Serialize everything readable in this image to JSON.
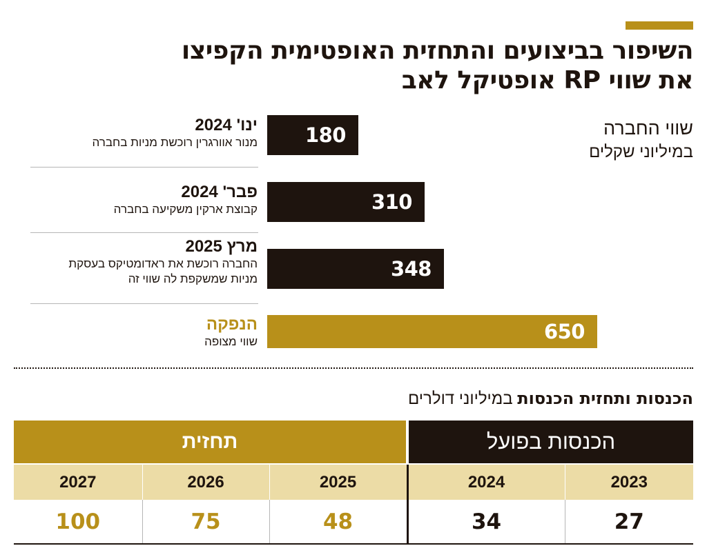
{
  "header": {
    "title_line1": "השיפור בביצועים והתחזית האופטימית הקפיצו",
    "title_line2": "את שווי RP אופטיקל לאב"
  },
  "value_chart": {
    "label_line1": "שווי החברה",
    "label_line2": "במיליוני שקלים"
  },
  "revenue_section": {
    "title_bold": "הכנסות ותחזית הכנסות",
    "title_unit": "במיליוני דולרים",
    "actual_header": "הכנסות בפועל",
    "forecast_header": "תחזית"
  },
  "colors": {
    "dark": "#1e140e",
    "gold": "#b8901a",
    "light_gold": "#ecdca6"
  },
  "chart_data": [
    {
      "type": "bar",
      "title": "שווי החברה",
      "ylabel": "במיליוני שקלים",
      "xlim": [
        0,
        700
      ],
      "items": [
        {
          "date": "ינו' 2024",
          "description": "מנור אוורגרין רוכשת מניות בחברה",
          "value": 180,
          "highlight": false
        },
        {
          "date": "פבר' 2024",
          "description": "קבוצת ארקין משקיעה בחברה",
          "value": 310,
          "highlight": false
        },
        {
          "date": "מרץ 2025",
          "description": "החברה רוכשת את ראדומטיקס בעסקת מניות שמשקפת לה שווי זה",
          "value": 348,
          "highlight": false
        },
        {
          "date": "הנפקה",
          "description": "שווי מצופה",
          "value": 650,
          "highlight": true
        }
      ]
    },
    {
      "type": "table",
      "title": "הכנסות ותחזית הכנסות",
      "unit": "במיליוני דולרים",
      "years": [
        "2023",
        "2024",
        "2025",
        "2026",
        "2027"
      ],
      "values": [
        27,
        34,
        48,
        75,
        100
      ],
      "kind": [
        "actual",
        "actual",
        "forecast",
        "forecast",
        "forecast"
      ]
    }
  ]
}
